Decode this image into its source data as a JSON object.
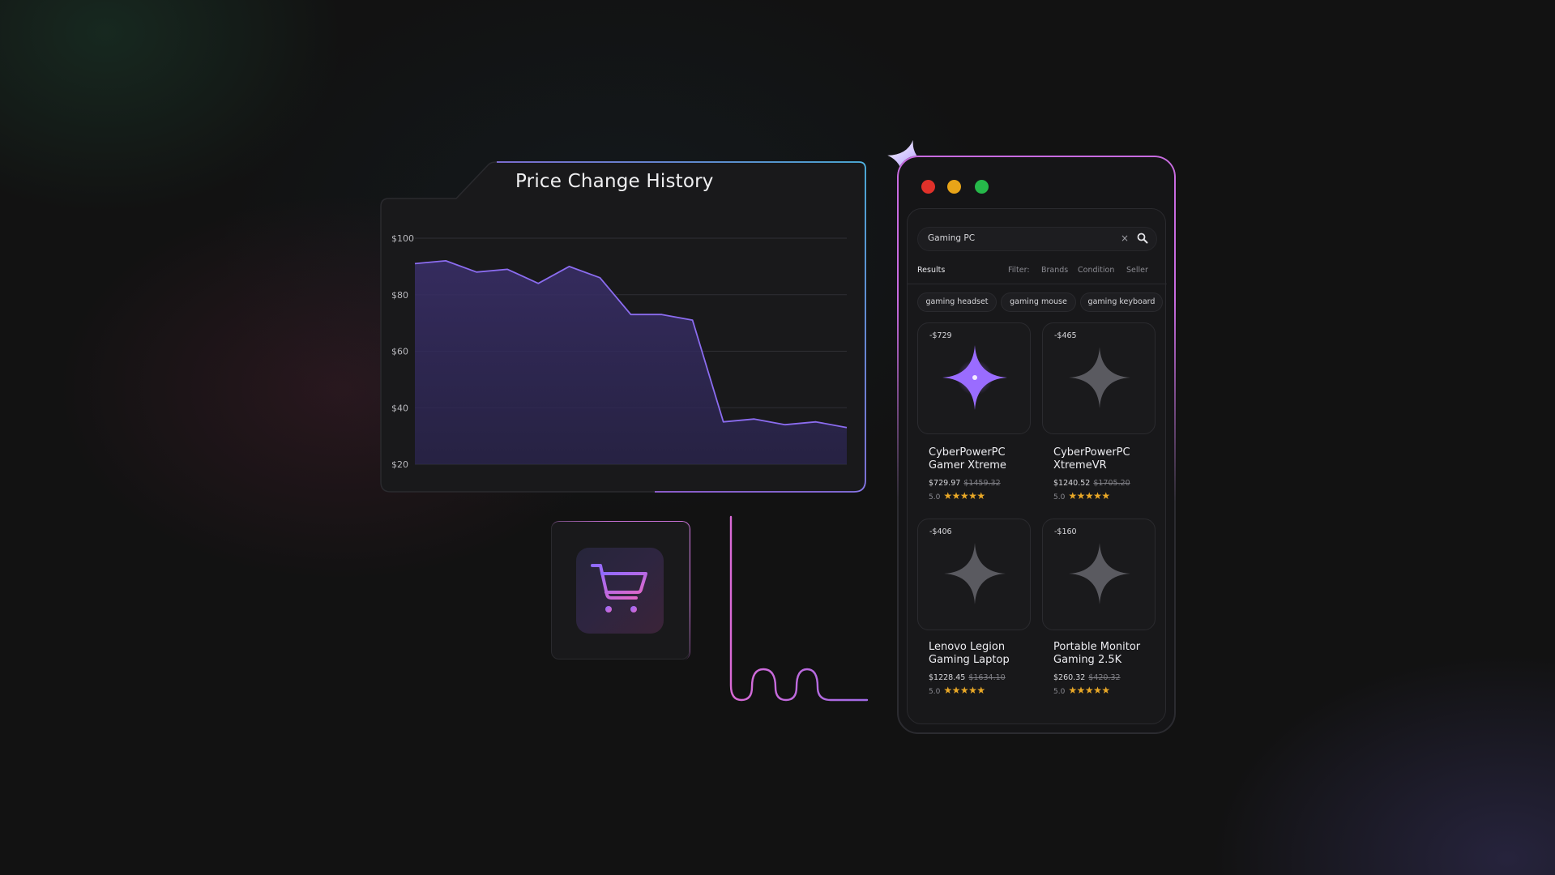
{
  "chart_window": {
    "title": "Price Change History",
    "chart_data": {
      "type": "area",
      "title": "Price Change History",
      "xlabel": "",
      "ylabel": "",
      "ylim": [
        20,
        100
      ],
      "yticks": [
        "$100",
        "$80",
        "$60",
        "$40",
        "$20"
      ],
      "grid": true,
      "series": [
        {
          "values": [
            91,
            92,
            88,
            89,
            84,
            90,
            86,
            73,
            73,
            71,
            35,
            36,
            34,
            35,
            33
          ]
        }
      ]
    }
  },
  "cart": {
    "icon": "shopping-cart-icon"
  },
  "browser": {
    "window_dots": [
      "#e0312a",
      "#e8a418",
      "#26b84a"
    ],
    "search": {
      "value": "Gaming PC",
      "clear": "×"
    },
    "tabs": {
      "results": "Results",
      "filter": "Filter:",
      "brands": "Brands",
      "condition": "Condition",
      "seller": "Seller"
    },
    "chips": [
      "gaming headset",
      "gaming mouse",
      "gaming keyboard"
    ],
    "products": [
      {
        "discount": "-$729",
        "name_line1": "CyberPowerPC",
        "name_line2": "Gamer Xtreme",
        "price": "$729.97",
        "old_price": "$1459.32",
        "rating": "5.0",
        "stars": "★★★★★"
      },
      {
        "discount": "-$465",
        "name_line1": "CyberPowerPC",
        "name_line2": "XtremeVR",
        "price": "$1240.52",
        "old_price": "$1705.20",
        "rating": "5.0",
        "stars": "★★★★★"
      },
      {
        "discount": "-$406",
        "name_line1": "Lenovo Legion",
        "name_line2": "Gaming Laptop",
        "price": "$1228.45",
        "old_price": "$1634.10",
        "rating": "5.0",
        "stars": "★★★★★"
      },
      {
        "discount": "-$160",
        "name_line1": "Portable Monitor",
        "name_line2": "Gaming  2.5K",
        "price": "$260.32",
        "old_price": "$420.32",
        "rating": "5.0",
        "stars": "★★★★★"
      }
    ],
    "accent_color": "#8b5cf6",
    "star_color": "#e9a827"
  }
}
